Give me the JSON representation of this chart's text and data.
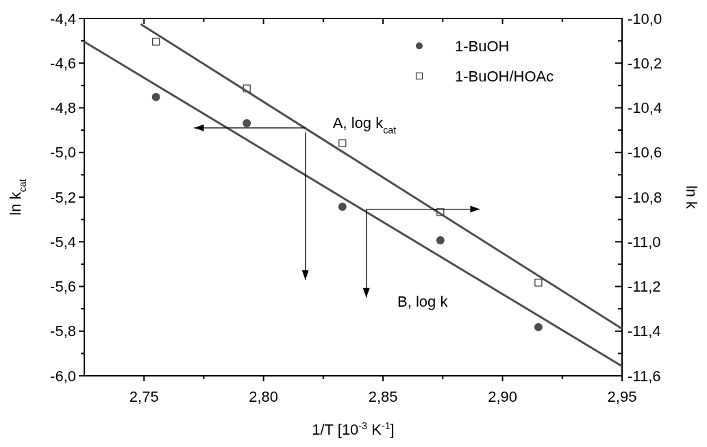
{
  "chart_data": {
    "type": "scatter",
    "xlabel": "1/T [10$^{-3}$ K$^{-1}$]",
    "ylabel": "ln k$_{cat}$",
    "y2label": "ln k",
    "xlim": [
      2.725,
      2.95
    ],
    "xticks": [
      {
        "value": 2.75,
        "label": "2,75"
      },
      {
        "value": 2.775,
        "label": null
      },
      {
        "value": 2.8,
        "label": "2,80"
      },
      {
        "value": 2.825,
        "label": null
      },
      {
        "value": 2.85,
        "label": "2,85"
      },
      {
        "value": 2.875,
        "label": null
      },
      {
        "value": 2.9,
        "label": "2,90"
      },
      {
        "value": 2.925,
        "label": null
      },
      {
        "value": 2.95,
        "label": "2,95"
      }
    ],
    "ylim": [
      -6.0,
      -4.4
    ],
    "yticks": [
      {
        "value": -4.4,
        "label": "-4,4"
      },
      {
        "value": -4.5,
        "label": null
      },
      {
        "value": -4.6,
        "label": "-4,6"
      },
      {
        "value": -4.7,
        "label": null
      },
      {
        "value": -4.8,
        "label": "-4,8"
      },
      {
        "value": -4.9,
        "label": null
      },
      {
        "value": -5.0,
        "label": "-5,0"
      },
      {
        "value": -5.1,
        "label": null
      },
      {
        "value": -5.2,
        "label": "-5,2"
      },
      {
        "value": -5.3,
        "label": null
      },
      {
        "value": -5.4,
        "label": "-5,4"
      },
      {
        "value": -5.5,
        "label": null
      },
      {
        "value": -5.6,
        "label": "-5,6"
      },
      {
        "value": -5.7,
        "label": null
      },
      {
        "value": -5.8,
        "label": "-5,8"
      },
      {
        "value": -5.9,
        "label": null
      },
      {
        "value": -6.0,
        "label": "-6,0"
      }
    ],
    "y2lim": [
      -11.6,
      -10.0
    ],
    "y2ticks": [
      {
        "value": -10.0,
        "label": "-10,0"
      },
      {
        "value": -10.1,
        "label": null
      },
      {
        "value": -10.2,
        "label": "-10,2"
      },
      {
        "value": -10.3,
        "label": null
      },
      {
        "value": -10.4,
        "label": "-10,4"
      },
      {
        "value": -10.5,
        "label": null
      },
      {
        "value": -10.6,
        "label": "-10,6"
      },
      {
        "value": -10.7,
        "label": null
      },
      {
        "value": -10.8,
        "label": "-10,8"
      },
      {
        "value": -10.9,
        "label": null
      },
      {
        "value": -11.0,
        "label": "-11,0"
      },
      {
        "value": -11.1,
        "label": null
      },
      {
        "value": -11.2,
        "label": "-11,2"
      },
      {
        "value": -11.3,
        "label": null
      },
      {
        "value": -11.4,
        "label": "-11,4"
      },
      {
        "value": -11.5,
        "label": null
      },
      {
        "value": -11.6,
        "label": "-11,6"
      }
    ],
    "legend": "top right",
    "grid": false,
    "series": [
      {
        "name": "1-BuOH",
        "marker": "circle",
        "color": "#4d4d4d",
        "x": [
          2.755,
          2.793,
          2.833,
          2.874,
          2.915
        ],
        "values": [
          -4.752,
          -4.869,
          -5.243,
          -5.393,
          -5.782
        ]
      },
      {
        "name": "1-BuOH/HOAc",
        "marker": "square",
        "color": "#333333",
        "x": [
          2.755,
          2.793,
          2.833,
          2.874,
          2.915
        ],
        "values": [
          -4.504,
          -4.713,
          -4.958,
          -5.267,
          -5.583
        ]
      },
      {
        "type": "line",
        "marker": "none",
        "line_style": "solid",
        "color": "#4d4d4d",
        "x": [
          2.725,
          2.95
        ],
        "values": [
          -4.504,
          -5.957
        ]
      },
      {
        "type": "line",
        "marker": "none",
        "line_style": "solid",
        "color": "#4d4d4d",
        "x": [
          2.7486,
          2.95
        ],
        "values": [
          -4.425,
          -5.789
        ]
      }
    ],
    "annotations": [
      "A, log k$_{cat}$",
      "B, log k"
    ]
  }
}
